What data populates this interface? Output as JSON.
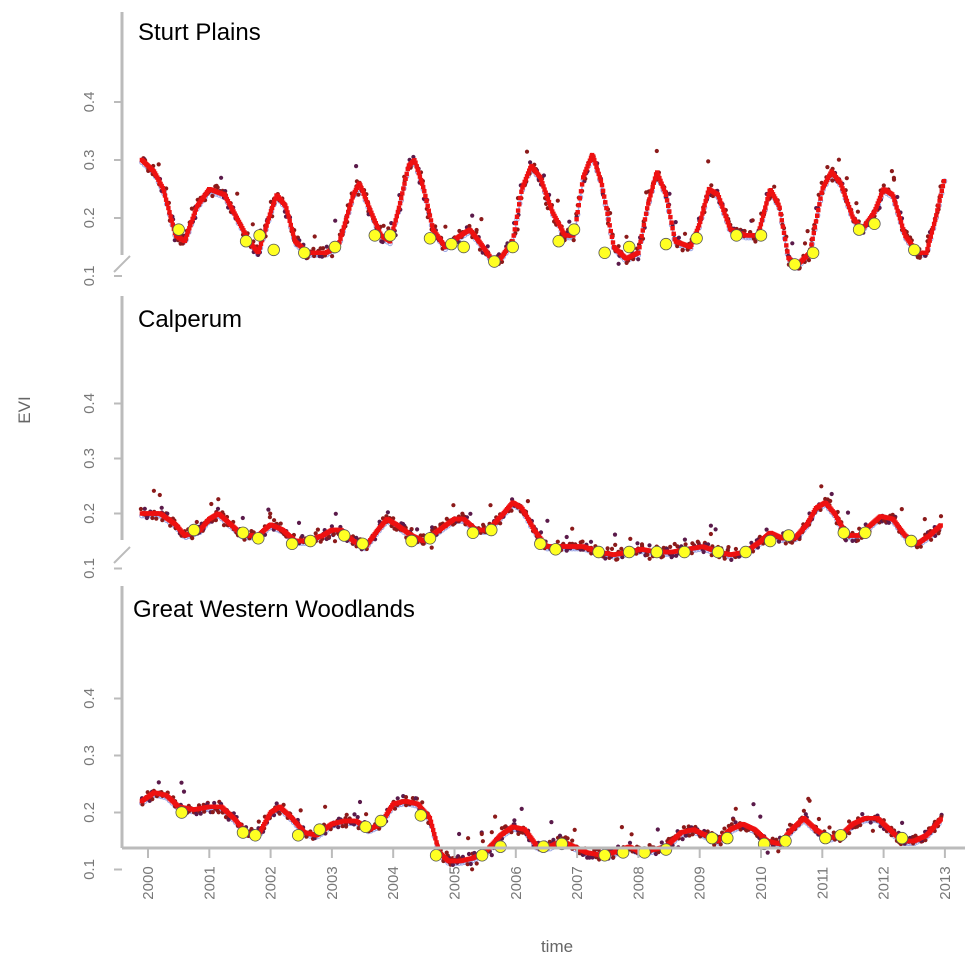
{
  "chart_data": {
    "type": "scatter",
    "xlabel": "time",
    "ylabel": "EVI",
    "x_ticks": [
      "2000",
      "2001",
      "2002",
      "2003",
      "2004",
      "2005",
      "2006",
      "2007",
      "2008",
      "2009",
      "2010",
      "2011",
      "2012",
      "2013"
    ],
    "y_ticks": [
      "0.1",
      "0.2",
      "0.3",
      "0.4"
    ],
    "xlim": [
      1999.8,
      2013.2
    ],
    "ylim": [
      0.05,
      0.45
    ],
    "grid": false,
    "colors": {
      "raw_points": "#8b1a1a",
      "smoothed": "#ee1111",
      "baseline": "#9aa6e6",
      "dark_points": "#5a1a4a",
      "markers": "#ffff22",
      "axis": "#bbbbbb",
      "tick_text": "#777777"
    },
    "panels": [
      {
        "title": "Sturt Plains",
        "curve": [
          [
            1999.9,
            0.3
          ],
          [
            2000.1,
            0.28
          ],
          [
            2000.25,
            0.25
          ],
          [
            2000.45,
            0.17
          ],
          [
            2000.6,
            0.16
          ],
          [
            2000.8,
            0.22
          ],
          [
            2001.0,
            0.25
          ],
          [
            2001.25,
            0.24
          ],
          [
            2001.45,
            0.2
          ],
          [
            2001.65,
            0.16
          ],
          [
            2001.8,
            0.14
          ],
          [
            2002.0,
            0.21
          ],
          [
            2002.1,
            0.24
          ],
          [
            2002.25,
            0.22
          ],
          [
            2002.4,
            0.16
          ],
          [
            2002.6,
            0.14
          ],
          [
            2002.9,
            0.14
          ],
          [
            2003.1,
            0.15
          ],
          [
            2003.35,
            0.24
          ],
          [
            2003.45,
            0.26
          ],
          [
            2003.6,
            0.22
          ],
          [
            2003.8,
            0.17
          ],
          [
            2003.95,
            0.16
          ],
          [
            2004.1,
            0.22
          ],
          [
            2004.25,
            0.29
          ],
          [
            2004.35,
            0.3
          ],
          [
            2004.5,
            0.25
          ],
          [
            2004.65,
            0.18
          ],
          [
            2004.85,
            0.15
          ],
          [
            2005.1,
            0.17
          ],
          [
            2005.25,
            0.18
          ],
          [
            2005.4,
            0.16
          ],
          [
            2005.6,
            0.13
          ],
          [
            2005.75,
            0.13
          ],
          [
            2005.95,
            0.16
          ],
          [
            2006.1,
            0.25
          ],
          [
            2006.25,
            0.29
          ],
          [
            2006.4,
            0.27
          ],
          [
            2006.6,
            0.21
          ],
          [
            2006.8,
            0.17
          ],
          [
            2006.95,
            0.17
          ],
          [
            2007.1,
            0.27
          ],
          [
            2007.25,
            0.31
          ],
          [
            2007.4,
            0.26
          ],
          [
            2007.6,
            0.15
          ],
          [
            2007.8,
            0.13
          ],
          [
            2008.0,
            0.14
          ],
          [
            2008.15,
            0.22
          ],
          [
            2008.3,
            0.28
          ],
          [
            2008.45,
            0.24
          ],
          [
            2008.6,
            0.16
          ],
          [
            2008.85,
            0.15
          ],
          [
            2009.0,
            0.19
          ],
          [
            2009.15,
            0.25
          ],
          [
            2009.3,
            0.24
          ],
          [
            2009.5,
            0.18
          ],
          [
            2009.75,
            0.17
          ],
          [
            2009.95,
            0.17
          ],
          [
            2010.15,
            0.25
          ],
          [
            2010.3,
            0.22
          ],
          [
            2010.45,
            0.13
          ],
          [
            2010.6,
            0.12
          ],
          [
            2010.8,
            0.14
          ],
          [
            2011.0,
            0.25
          ],
          [
            2011.15,
            0.28
          ],
          [
            2011.3,
            0.26
          ],
          [
            2011.5,
            0.2
          ],
          [
            2011.65,
            0.18
          ],
          [
            2011.85,
            0.21
          ],
          [
            2012.0,
            0.25
          ],
          [
            2012.15,
            0.24
          ],
          [
            2012.35,
            0.17
          ],
          [
            2012.55,
            0.14
          ],
          [
            2012.7,
            0.14
          ],
          [
            2012.85,
            0.2
          ],
          [
            2013.0,
            0.27
          ]
        ],
        "markers": [
          [
            2000.5,
            0.18
          ],
          [
            2001.6,
            0.16
          ],
          [
            2001.82,
            0.17
          ],
          [
            2002.05,
            0.145
          ],
          [
            2002.55,
            0.14
          ],
          [
            2003.05,
            0.15
          ],
          [
            2003.7,
            0.17
          ],
          [
            2003.95,
            0.17
          ],
          [
            2004.6,
            0.165
          ],
          [
            2004.95,
            0.155
          ],
          [
            2005.15,
            0.15
          ],
          [
            2005.65,
            0.125
          ],
          [
            2005.95,
            0.15
          ],
          [
            2006.7,
            0.16
          ],
          [
            2006.95,
            0.18
          ],
          [
            2007.45,
            0.14
          ],
          [
            2007.85,
            0.15
          ],
          [
            2008.45,
            0.155
          ],
          [
            2008.95,
            0.165
          ],
          [
            2009.6,
            0.17
          ],
          [
            2010.0,
            0.17
          ],
          [
            2010.55,
            0.12
          ],
          [
            2010.85,
            0.14
          ],
          [
            2011.6,
            0.18
          ],
          [
            2011.85,
            0.19
          ],
          [
            2012.5,
            0.145
          ]
        ]
      },
      {
        "title": "Calperum",
        "curve": [
          [
            1999.9,
            0.2
          ],
          [
            2000.2,
            0.2
          ],
          [
            2000.45,
            0.18
          ],
          [
            2000.6,
            0.16
          ],
          [
            2000.85,
            0.17
          ],
          [
            2001.0,
            0.19
          ],
          [
            2001.15,
            0.2
          ],
          [
            2001.35,
            0.18
          ],
          [
            2001.55,
            0.16
          ],
          [
            2001.8,
            0.16
          ],
          [
            2002.0,
            0.18
          ],
          [
            2002.2,
            0.17
          ],
          [
            2002.4,
            0.15
          ],
          [
            2002.6,
            0.15
          ],
          [
            2002.85,
            0.16
          ],
          [
            2003.0,
            0.17
          ],
          [
            2003.15,
            0.17
          ],
          [
            2003.35,
            0.15
          ],
          [
            2003.55,
            0.14
          ],
          [
            2003.75,
            0.17
          ],
          [
            2003.9,
            0.19
          ],
          [
            2004.05,
            0.18
          ],
          [
            2004.3,
            0.16
          ],
          [
            2004.5,
            0.15
          ],
          [
            2004.75,
            0.17
          ],
          [
            2005.0,
            0.19
          ],
          [
            2005.15,
            0.19
          ],
          [
            2005.35,
            0.17
          ],
          [
            2005.55,
            0.17
          ],
          [
            2005.8,
            0.2
          ],
          [
            2005.95,
            0.22
          ],
          [
            2006.1,
            0.21
          ],
          [
            2006.3,
            0.17
          ],
          [
            2006.5,
            0.14
          ],
          [
            2006.7,
            0.14
          ],
          [
            2006.9,
            0.14
          ],
          [
            2007.1,
            0.14
          ],
          [
            2007.35,
            0.13
          ],
          [
            2007.6,
            0.125
          ],
          [
            2007.85,
            0.13
          ],
          [
            2008.05,
            0.135
          ],
          [
            2008.3,
            0.13
          ],
          [
            2008.55,
            0.13
          ],
          [
            2008.8,
            0.135
          ],
          [
            2009.05,
            0.14
          ],
          [
            2009.3,
            0.13
          ],
          [
            2009.5,
            0.125
          ],
          [
            2009.75,
            0.13
          ],
          [
            2010.0,
            0.15
          ],
          [
            2010.15,
            0.165
          ],
          [
            2010.35,
            0.155
          ],
          [
            2010.55,
            0.155
          ],
          [
            2010.75,
            0.18
          ],
          [
            2010.9,
            0.21
          ],
          [
            2011.05,
            0.22
          ],
          [
            2011.2,
            0.2
          ],
          [
            2011.4,
            0.16
          ],
          [
            2011.6,
            0.16
          ],
          [
            2011.8,
            0.18
          ],
          [
            2011.95,
            0.195
          ],
          [
            2012.15,
            0.19
          ],
          [
            2012.35,
            0.16
          ],
          [
            2012.55,
            0.145
          ],
          [
            2012.75,
            0.16
          ],
          [
            2012.95,
            0.18
          ]
        ],
        "markers": [
          [
            2000.75,
            0.17
          ],
          [
            2001.55,
            0.165
          ],
          [
            2001.8,
            0.155
          ],
          [
            2002.35,
            0.145
          ],
          [
            2002.65,
            0.15
          ],
          [
            2003.2,
            0.16
          ],
          [
            2003.5,
            0.145
          ],
          [
            2004.3,
            0.15
          ],
          [
            2004.6,
            0.155
          ],
          [
            2005.3,
            0.165
          ],
          [
            2005.6,
            0.17
          ],
          [
            2006.4,
            0.145
          ],
          [
            2006.65,
            0.135
          ],
          [
            2007.35,
            0.13
          ],
          [
            2007.85,
            0.13
          ],
          [
            2008.3,
            0.13
          ],
          [
            2008.75,
            0.13
          ],
          [
            2009.3,
            0.13
          ],
          [
            2009.75,
            0.13
          ],
          [
            2010.15,
            0.15
          ],
          [
            2010.45,
            0.16
          ],
          [
            2011.35,
            0.165
          ],
          [
            2011.7,
            0.165
          ],
          [
            2012.45,
            0.15
          ]
        ]
      },
      {
        "title": "Great Western Woodlands",
        "curve": [
          [
            1999.9,
            0.22
          ],
          [
            2000.1,
            0.235
          ],
          [
            2000.3,
            0.23
          ],
          [
            2000.5,
            0.21
          ],
          [
            2000.75,
            0.205
          ],
          [
            2001.0,
            0.21
          ],
          [
            2001.2,
            0.21
          ],
          [
            2001.4,
            0.19
          ],
          [
            2001.6,
            0.165
          ],
          [
            2001.8,
            0.16
          ],
          [
            2002.0,
            0.2
          ],
          [
            2002.15,
            0.21
          ],
          [
            2002.35,
            0.19
          ],
          [
            2002.55,
            0.165
          ],
          [
            2002.75,
            0.16
          ],
          [
            2003.0,
            0.18
          ],
          [
            2003.2,
            0.185
          ],
          [
            2003.4,
            0.185
          ],
          [
            2003.6,
            0.17
          ],
          [
            2003.8,
            0.18
          ],
          [
            2004.0,
            0.215
          ],
          [
            2004.2,
            0.22
          ],
          [
            2004.4,
            0.215
          ],
          [
            2004.6,
            0.19
          ],
          [
            2004.75,
            0.13
          ],
          [
            2004.9,
            0.115
          ],
          [
            2005.1,
            0.115
          ],
          [
            2005.3,
            0.12
          ],
          [
            2005.5,
            0.13
          ],
          [
            2005.75,
            0.16
          ],
          [
            2005.95,
            0.175
          ],
          [
            2006.15,
            0.17
          ],
          [
            2006.35,
            0.14
          ],
          [
            2006.55,
            0.14
          ],
          [
            2006.75,
            0.15
          ],
          [
            2006.95,
            0.14
          ],
          [
            2007.15,
            0.13
          ],
          [
            2007.4,
            0.125
          ],
          [
            2007.6,
            0.13
          ],
          [
            2007.85,
            0.14
          ],
          [
            2008.05,
            0.13
          ],
          [
            2008.25,
            0.135
          ],
          [
            2008.45,
            0.14
          ],
          [
            2008.7,
            0.165
          ],
          [
            2008.9,
            0.17
          ],
          [
            2009.1,
            0.16
          ],
          [
            2009.3,
            0.15
          ],
          [
            2009.5,
            0.17
          ],
          [
            2009.7,
            0.18
          ],
          [
            2009.9,
            0.17
          ],
          [
            2010.1,
            0.15
          ],
          [
            2010.3,
            0.145
          ],
          [
            2010.5,
            0.17
          ],
          [
            2010.7,
            0.19
          ],
          [
            2010.9,
            0.17
          ],
          [
            2011.1,
            0.155
          ],
          [
            2011.3,
            0.16
          ],
          [
            2011.5,
            0.18
          ],
          [
            2011.7,
            0.19
          ],
          [
            2011.9,
            0.19
          ],
          [
            2012.1,
            0.17
          ],
          [
            2012.3,
            0.15
          ],
          [
            2012.5,
            0.15
          ],
          [
            2012.7,
            0.16
          ],
          [
            2012.95,
            0.19
          ]
        ],
        "markers": [
          [
            2000.55,
            0.2
          ],
          [
            2001.55,
            0.165
          ],
          [
            2001.75,
            0.16
          ],
          [
            2002.45,
            0.16
          ],
          [
            2002.8,
            0.17
          ],
          [
            2003.55,
            0.175
          ],
          [
            2003.8,
            0.185
          ],
          [
            2004.45,
            0.195
          ],
          [
            2004.7,
            0.125
          ],
          [
            2005.45,
            0.125
          ],
          [
            2005.75,
            0.14
          ],
          [
            2006.45,
            0.14
          ],
          [
            2006.75,
            0.145
          ],
          [
            2007.45,
            0.125
          ],
          [
            2007.75,
            0.13
          ],
          [
            2008.1,
            0.13
          ],
          [
            2008.45,
            0.135
          ],
          [
            2009.2,
            0.155
          ],
          [
            2009.45,
            0.155
          ],
          [
            2010.05,
            0.145
          ],
          [
            2010.4,
            0.15
          ],
          [
            2011.05,
            0.155
          ],
          [
            2011.3,
            0.16
          ],
          [
            2012.3,
            0.155
          ]
        ]
      }
    ]
  }
}
